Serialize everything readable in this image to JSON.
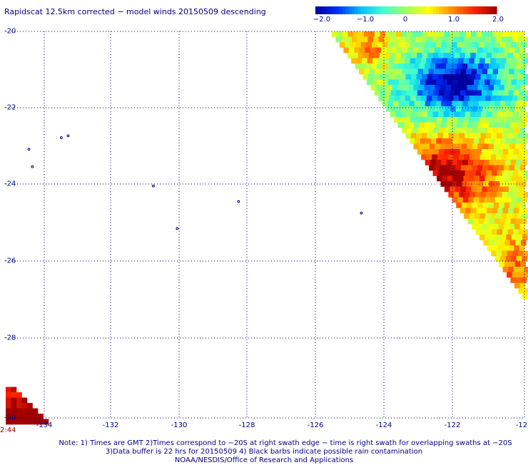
{
  "title": "Rapidscat 12.5km corrected − model winds 20150509 descending",
  "colorbar": {
    "labels": [
      "−2.0",
      "−1.0",
      "0",
      "1.0",
      "2.0"
    ],
    "min": -2.0,
    "max": 2.0,
    "colors": [
      "#0000a0",
      "#0030ff",
      "#00c0ff",
      "#40ffd0",
      "#a0ff60",
      "#ffff00",
      "#ff9000",
      "#ff2000",
      "#a00000"
    ]
  },
  "axes": {
    "x_ticks": [
      "-134",
      "-132",
      "-130",
      "-128",
      "-126",
      "-124",
      "-122",
      "-12"
    ],
    "y_ticks": [
      "-20",
      "-22",
      "-24",
      "-26",
      "-28",
      "-30"
    ],
    "lon_range": [
      -134.5,
      -120.0
    ],
    "lat_range": [
      -20,
      -30
    ],
    "grid": true
  },
  "time_label": "2:44",
  "notes": [
    "Note: 1) Times are GMT 2)Times correspond to −20S at right swath edge − time is right swath for overlapping swaths at −20S",
    "3)Data buffer is 22 hrs for 20150509 4) Black barbs indicate possible rain contamination",
    "NOAA/NESDIS/Office of Research and Applications"
  ],
  "islands": [
    {
      "lon": -134.45,
      "lat": -23.05
    },
    {
      "lon": -134.35,
      "lat": -23.5
    },
    {
      "lon": -133.5,
      "lat": -22.75
    },
    {
      "lon": -133.3,
      "lat": -22.7
    },
    {
      "lon": -130.8,
      "lat": -24.0
    },
    {
      "lon": -130.1,
      "lat": -25.1
    },
    {
      "lon": -128.3,
      "lat": -24.4
    },
    {
      "lon": -124.7,
      "lat": -24.7
    }
  ]
}
